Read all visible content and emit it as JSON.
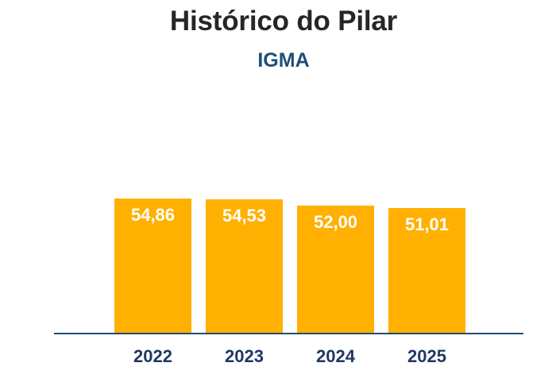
{
  "chart_data": {
    "type": "bar",
    "title": "Histórico do Pilar",
    "subtitle": "IGMA",
    "categories": [
      "2022",
      "2023",
      "2024",
      "2025"
    ],
    "series": [
      {
        "values": [
          54.86,
          54.53,
          52.0,
          51.01
        ],
        "value_labels": [
          "54,86",
          "54,53",
          "52,00",
          "51,01"
        ]
      }
    ],
    "colors": {
      "bar": "#FFB000",
      "bar_label": "#FFFFFF",
      "category_label": "#1F3864",
      "axis": "#1F4E79",
      "title": "#262626",
      "subtitle": "#1F4E79"
    },
    "grid": false,
    "legend": "none"
  }
}
